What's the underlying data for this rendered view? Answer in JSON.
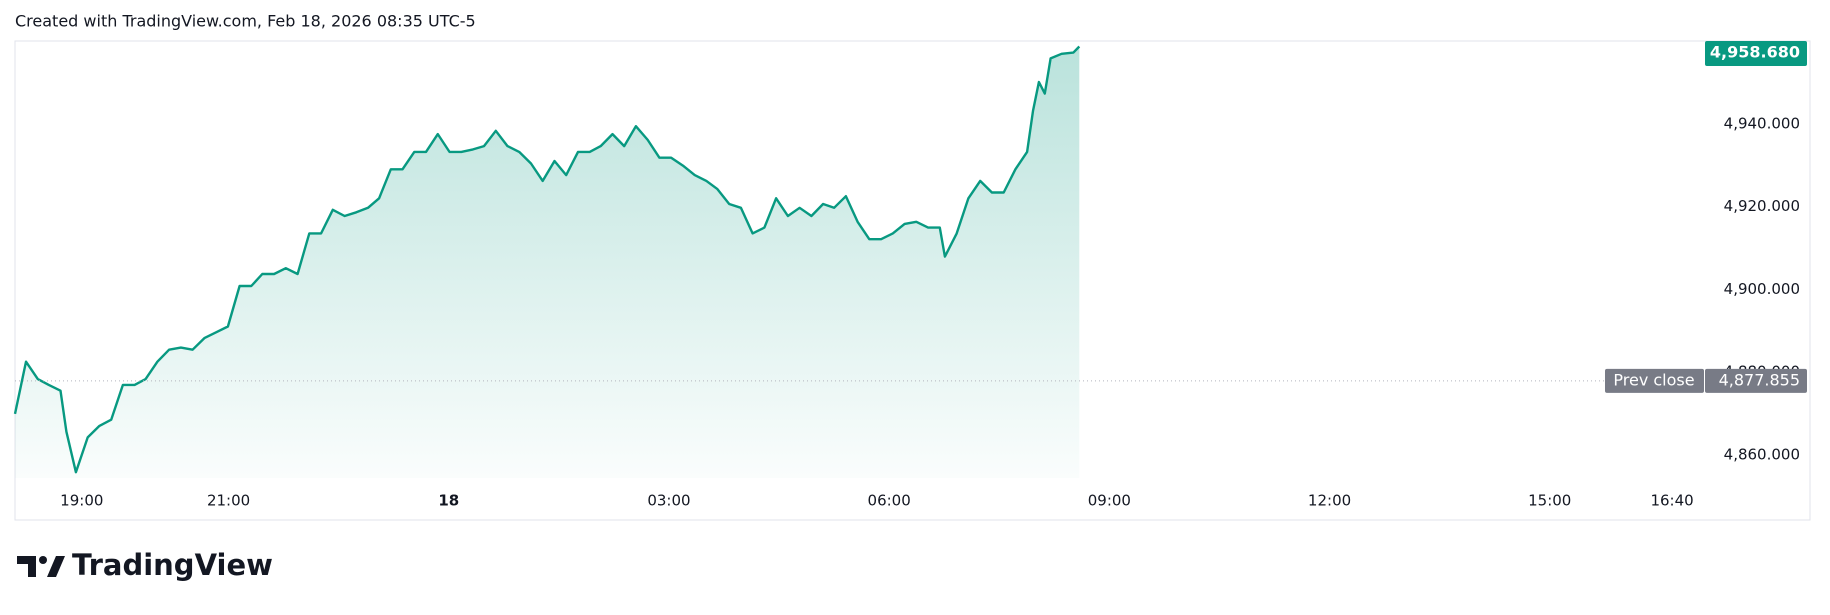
{
  "header": {
    "text": "Created with TradingView.com, Feb 18, 2026 08:35 UTC-5"
  },
  "chart_data": {
    "type": "area",
    "color": "#089981",
    "x": [
      18.09,
      18.24,
      18.4,
      18.55,
      18.71,
      18.79,
      18.92,
      19.08,
      19.24,
      19.4,
      19.56,
      19.72,
      19.87,
      20.03,
      20.19,
      20.35,
      20.51,
      20.67,
      20.83,
      20.99,
      21.15,
      21.31,
      21.46,
      21.62,
      21.78,
      21.94,
      22.1,
      22.26,
      22.42,
      22.58,
      22.74,
      22.9,
      23.05,
      23.21,
      23.37,
      23.53,
      23.69,
      23.85,
      24.01,
      24.17,
      24.33,
      24.48,
      24.64,
      24.8,
      24.96,
      25.12,
      25.28,
      25.44,
      25.6,
      25.76,
      25.92,
      26.07,
      26.23,
      26.39,
      26.55,
      26.71,
      26.87,
      27.03,
      27.19,
      27.35,
      27.51,
      27.66,
      27.82,
      27.98,
      28.14,
      28.3,
      28.46,
      28.62,
      28.78,
      28.94,
      29.1,
      29.25,
      29.41,
      29.57,
      29.73,
      29.89,
      30.05,
      30.21,
      30.37,
      30.53,
      30.69,
      30.76,
      30.92,
      31.08,
      31.24,
      31.4,
      31.56,
      31.72,
      31.88,
      31.96,
      32.04,
      32.12,
      32.2,
      32.35,
      32.51,
      32.59
    ],
    "values": [
      4869.9,
      4882.5,
      4878.3,
      4876.9,
      4875.5,
      4865.6,
      4855.8,
      4864.2,
      4867.0,
      4868.5,
      4876.9,
      4876.9,
      4878.3,
      4882.5,
      4885.4,
      4885.9,
      4885.4,
      4888.2,
      4889.6,
      4891.0,
      4900.8,
      4900.8,
      4903.7,
      4903.7,
      4905.1,
      4903.7,
      4913.5,
      4913.5,
      4919.2,
      4917.7,
      4918.6,
      4919.7,
      4922.0,
      4929.0,
      4929.0,
      4933.2,
      4933.2,
      4937.5,
      4933.2,
      4933.2,
      4933.8,
      4934.6,
      4938.3,
      4934.6,
      4933.2,
      4930.4,
      4926.2,
      4931.0,
      4927.6,
      4933.2,
      4933.2,
      4934.6,
      4937.5,
      4934.6,
      4939.4,
      4936.1,
      4931.8,
      4931.8,
      4929.9,
      4927.6,
      4926.2,
      4924.2,
      4920.6,
      4919.7,
      4913.5,
      4914.9,
      4922.0,
      4917.7,
      4919.7,
      4917.7,
      4920.6,
      4919.7,
      4922.5,
      4916.3,
      4912.1,
      4912.1,
      4913.5,
      4915.8,
      4916.3,
      4914.9,
      4914.9,
      4907.9,
      4913.5,
      4922.0,
      4926.2,
      4923.4,
      4923.4,
      4929.0,
      4933.2,
      4943.1,
      4950.1,
      4947.3,
      4955.8,
      4956.9,
      4957.2,
      4958.68
    ],
    "xlim": [
      18.09,
      41.02
    ],
    "xticks": [
      {
        "value": 19,
        "label": "19:00"
      },
      {
        "value": 21,
        "label": "21:00"
      },
      {
        "value": 24,
        "label": "18"
      },
      {
        "value": 27,
        "label": "03:00"
      },
      {
        "value": 30,
        "label": "06:00"
      },
      {
        "value": 33,
        "label": "09:00"
      },
      {
        "value": 36,
        "label": "12:00"
      },
      {
        "value": 39,
        "label": "15:00"
      },
      {
        "value": 40.667,
        "label": "16:40"
      }
    ],
    "ylim": [
      4854.4,
      4960
    ],
    "yticks": [
      {
        "value": 4860,
        "label": "4,860.000"
      },
      {
        "value": 4880,
        "label": "4,880.000"
      },
      {
        "value": 4900,
        "label": "4,900.000"
      },
      {
        "value": 4920,
        "label": "4,920.000"
      },
      {
        "value": 4940,
        "label": "4,940.000"
      }
    ],
    "grid": false,
    "last_price": {
      "value": 4958.68,
      "label": "4,958.680"
    },
    "prev_close": {
      "name": "Prev close",
      "value": 4877.855,
      "label": "4,877.855"
    }
  },
  "footer": {
    "logo_text": "TradingView"
  }
}
